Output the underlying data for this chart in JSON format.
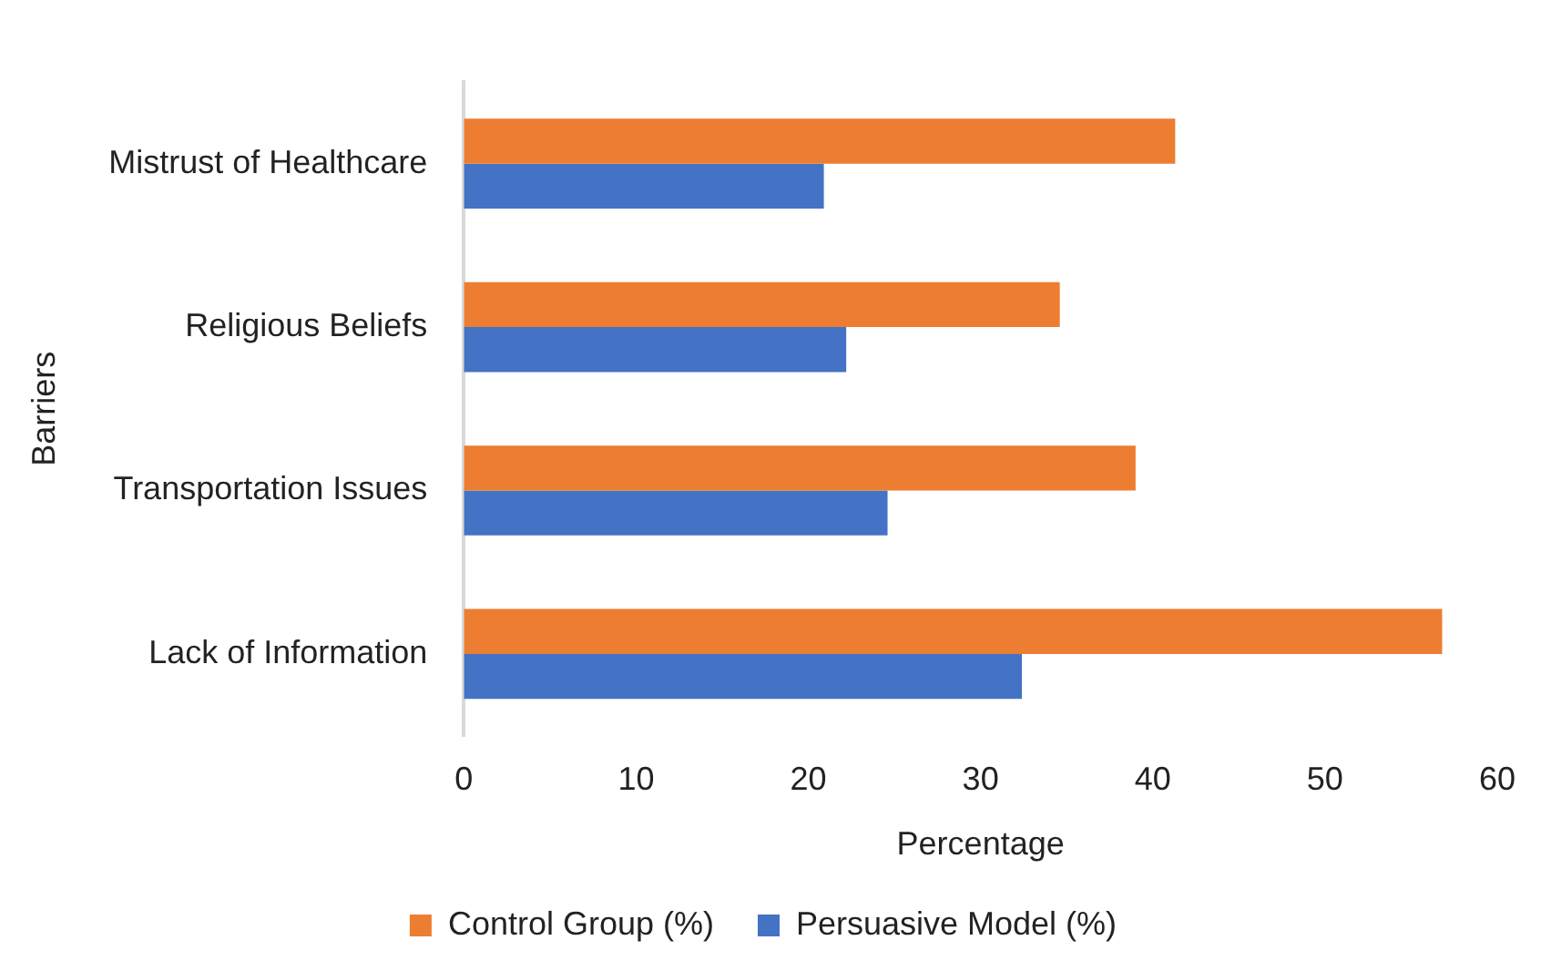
{
  "chart_data": {
    "type": "bar",
    "orientation": "horizontal",
    "xlabel": "Percentage",
    "ylabel": "Barriers",
    "categories": [
      "Mistrust of Healthcare",
      "Religious Beliefs",
      "Transportation Issues",
      "Lack of Information"
    ],
    "series": [
      {
        "name": "Control Group (%)",
        "color": "#ed7d31",
        "values": [
          41.3,
          34.6,
          39.0,
          56.8
        ]
      },
      {
        "name": "Persuasive Model (%)",
        "color": "#4472c4",
        "values": [
          20.9,
          22.2,
          24.6,
          32.4
        ]
      }
    ],
    "xlim": [
      0,
      60
    ],
    "xticks": [
      0,
      10,
      20,
      30,
      40,
      50,
      60
    ],
    "grid": false,
    "legend": "bottom"
  }
}
